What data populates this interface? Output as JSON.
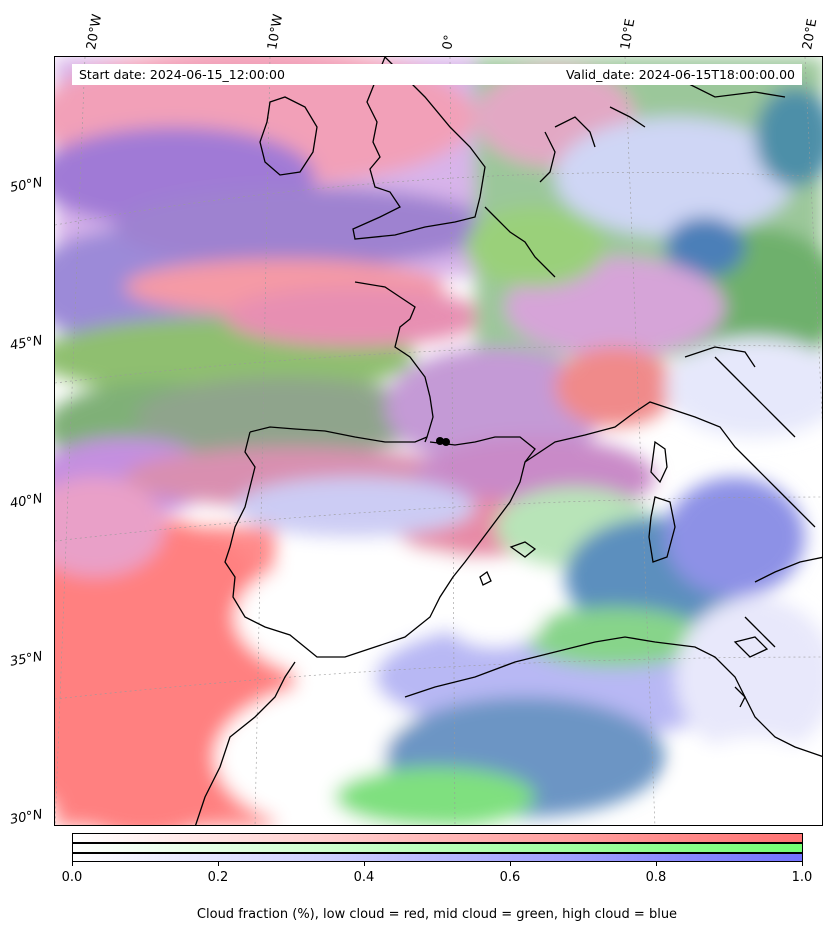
{
  "header": {
    "start_date": "Start date: 2024-06-15_12:00:00",
    "valid_date": "Valid_date: 2024-06-15T18:00:00.00"
  },
  "map": {
    "lon_labels": [
      "20°W",
      "10°W",
      "0°",
      "10°E",
      "20°E"
    ],
    "lat_labels": [
      "50°N",
      "45°N",
      "40°N",
      "35°N",
      "30°N"
    ],
    "coastline_color": "#000000",
    "gridline_color": "#9a9a9a"
  },
  "colorbar": {
    "tick_labels": [
      "0.0",
      "0.2",
      "0.4",
      "0.6",
      "0.8",
      "1.0"
    ],
    "caption": "Cloud fraction (%), low cloud = red, mid cloud = green, high cloud = blue",
    "colors": {
      "low": "#ff7373",
      "mid": "#73ff73",
      "high": "#7373ff"
    }
  }
}
